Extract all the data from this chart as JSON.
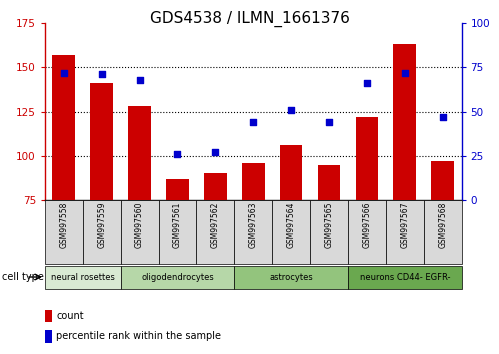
{
  "title": "GDS4538 / ILMN_1661376",
  "samples": [
    "GSM997558",
    "GSM997559",
    "GSM997560",
    "GSM997561",
    "GSM997562",
    "GSM997563",
    "GSM997564",
    "GSM997565",
    "GSM997566",
    "GSM997567",
    "GSM997568"
  ],
  "counts": [
    157,
    141,
    128,
    87,
    90,
    96,
    106,
    95,
    122,
    163,
    97
  ],
  "percentiles": [
    72,
    71,
    68,
    26,
    27,
    44,
    51,
    44,
    66,
    72,
    47
  ],
  "cell_types": [
    {
      "label": "neural rosettes",
      "start": 0,
      "end": 1,
      "color": "#d9ead3"
    },
    {
      "label": "oligodendrocytes",
      "start": 2,
      "end": 4,
      "color": "#b6d7a8"
    },
    {
      "label": "astrocytes",
      "start": 5,
      "end": 7,
      "color": "#93c47d"
    },
    {
      "label": "neurons CD44- EGFR-",
      "start": 8,
      "end": 10,
      "color": "#6aa84f"
    }
  ],
  "ylim_left": [
    75,
    175
  ],
  "ylim_right": [
    0,
    100
  ],
  "yticks_left": [
    75,
    100,
    125,
    150,
    175
  ],
  "yticks_right": [
    0,
    25,
    50,
    75,
    100
  ],
  "bar_color": "#cc0000",
  "scatter_color": "#0000cc",
  "left_axis_color": "#cc0000",
  "right_axis_color": "#0000cc",
  "cell_type_label": "cell type",
  "legend_count_label": "count",
  "legend_pct_label": "percentile rank within the sample",
  "sample_bg_color": "#d9d9d9",
  "bar_width": 0.6
}
